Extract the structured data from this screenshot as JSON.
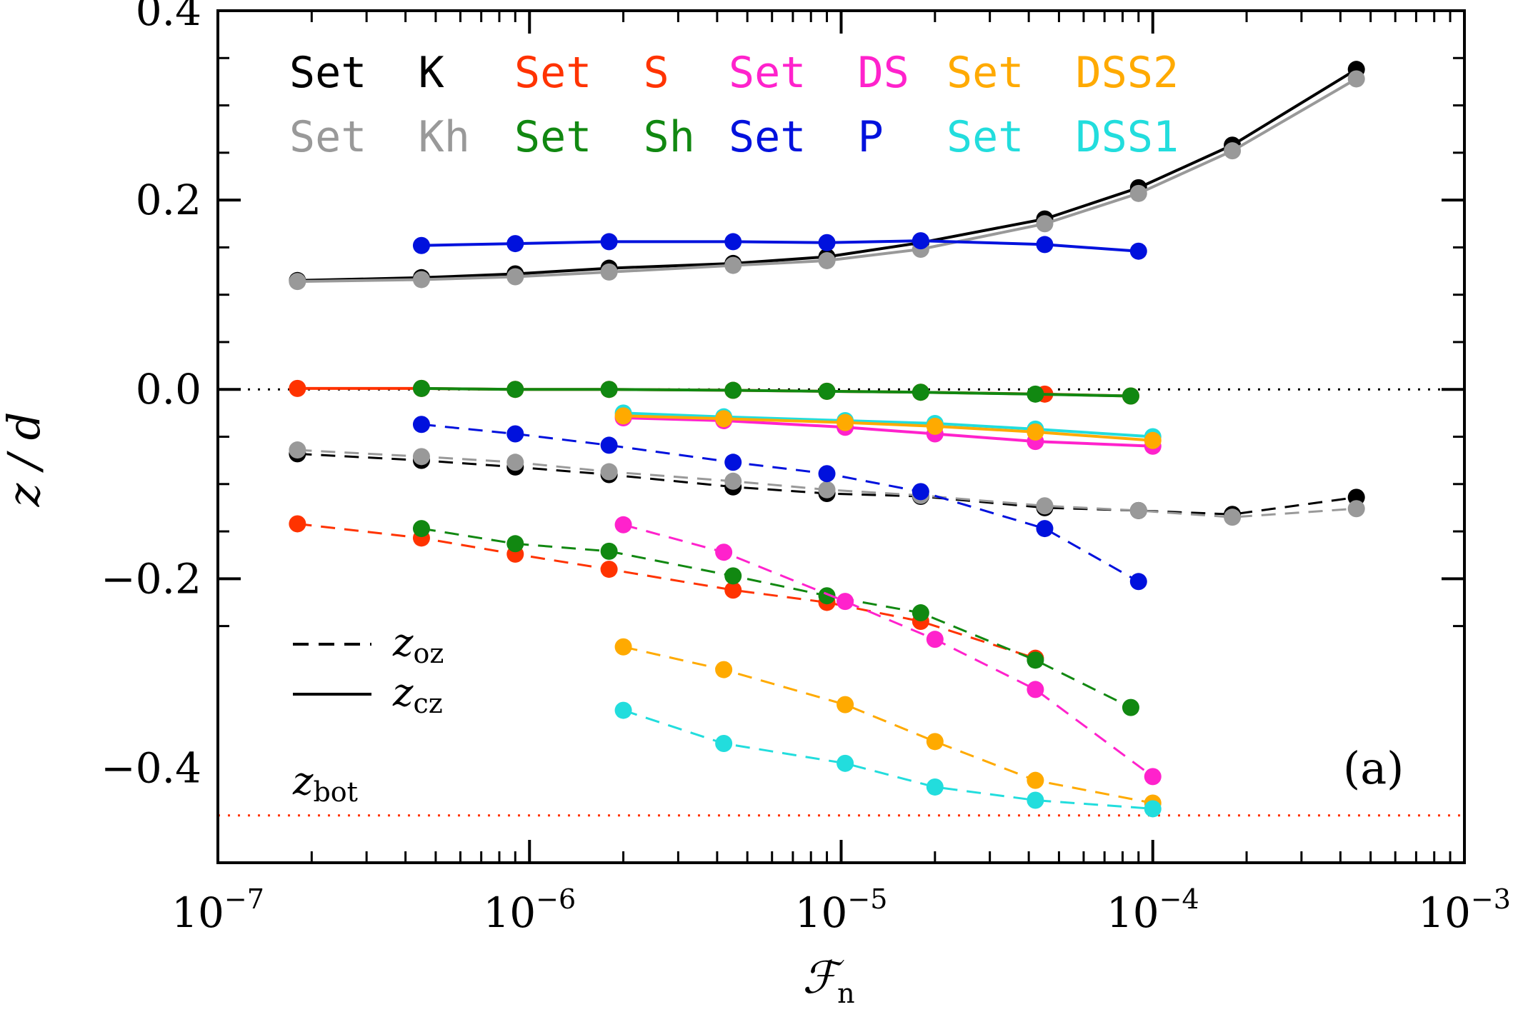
{
  "colors": {
    "K": "#000000",
    "Kh": "#999999",
    "S": "#ff3300",
    "Sh": "#118811",
    "DS": "#ff22cc",
    "P": "#0011dd",
    "DSS2": "#ffaa00",
    "DSS1": "#22dddd"
  },
  "chart_data": {
    "type": "line",
    "xscale": "log",
    "xlim": [
      1e-07,
      0.001
    ],
    "ylim": [
      -0.5,
      0.4
    ],
    "xlabel_main": "ℱ",
    "xlabel_sub": "n",
    "ylabel": "z / d",
    "x_ticks": [
      {
        "base": "10",
        "exp": "−7",
        "value": 1e-07
      },
      {
        "base": "10",
        "exp": "−6",
        "value": 1e-06
      },
      {
        "base": "10",
        "exp": "−5",
        "value": 1e-05
      },
      {
        "base": "10",
        "exp": "−4",
        "value": 0.0001
      },
      {
        "base": "10",
        "exp": "−3",
        "value": 0.001
      }
    ],
    "y_ticks": [
      {
        "label": "0.4",
        "value": 0.4
      },
      {
        "label": "0.2",
        "value": 0.2
      },
      {
        "label": "0.0",
        "value": 0.0
      },
      {
        "label": "−0.2",
        "value": -0.2
      },
      {
        "label": "−0.4",
        "value": -0.4
      }
    ],
    "zero_line": 0.0,
    "z_bot": -0.45,
    "legend": [
      {
        "key": "K",
        "label": "Set  K"
      },
      {
        "key": "S",
        "label": "Set  S"
      },
      {
        "key": "DS",
        "label": "Set  DS"
      },
      {
        "key": "DSS2",
        "label": "Set  DSS2"
      },
      {
        "key": "Kh",
        "label": "Set  Kh"
      },
      {
        "key": "Sh",
        "label": "Set  Sh"
      },
      {
        "key": "P",
        "label": "Set  P"
      },
      {
        "key": "DSS1",
        "label": "Set  DSS1"
      }
    ],
    "line_style_legend": {
      "dashed_main": "z",
      "dashed_sub": "oz",
      "solid_main": "z",
      "solid_sub": "cz"
    },
    "zbot_label": {
      "main": "z",
      "sub": "bot"
    },
    "panel_label": "(a)",
    "series": [
      {
        "name": "K",
        "kind": "cz",
        "x": [
          1.8e-07,
          4.5e-07,
          9e-07,
          1.8e-06,
          4.5e-06,
          9e-06,
          1.8e-05,
          4.5e-05,
          9e-05,
          0.00018,
          0.00045
        ],
        "y": [
          0.115,
          0.118,
          0.122,
          0.128,
          0.133,
          0.14,
          0.155,
          0.18,
          0.213,
          0.258,
          0.338
        ]
      },
      {
        "name": "Kh",
        "kind": "cz",
        "x": [
          1.8e-07,
          4.5e-07,
          9e-07,
          1.8e-06,
          4.5e-06,
          9e-06,
          1.8e-05,
          4.5e-05,
          9e-05,
          0.00018,
          0.00045
        ],
        "y": [
          0.114,
          0.116,
          0.119,
          0.124,
          0.131,
          0.136,
          0.148,
          0.175,
          0.207,
          0.252,
          0.328
        ]
      },
      {
        "name": "P",
        "kind": "cz",
        "x": [
          4.5e-07,
          9e-07,
          1.8e-06,
          4.5e-06,
          9e-06,
          1.8e-05,
          4.5e-05,
          9e-05
        ],
        "y": [
          0.152,
          0.154,
          0.156,
          0.156,
          0.155,
          0.157,
          0.153,
          0.146
        ]
      },
      {
        "name": "S",
        "kind": "cz",
        "x": [
          1.8e-07,
          4.5e-07,
          9e-07,
          1.8e-06,
          4.5e-06,
          9e-06,
          1.8e-05,
          4.5e-05,
          8.5e-05
        ],
        "y": [
          0.001,
          0.001,
          0.0,
          0.0,
          -0.001,
          -0.002,
          -0.003,
          -0.005,
          -0.007
        ]
      },
      {
        "name": "Sh",
        "kind": "cz",
        "x": [
          4.5e-07,
          9e-07,
          1.8e-06,
          4.5e-06,
          9e-06,
          1.8e-05,
          4.2e-05,
          8.5e-05
        ],
        "y": [
          0.001,
          0.0,
          0.0,
          -0.001,
          -0.002,
          -0.003,
          -0.005,
          -0.007
        ]
      },
      {
        "name": "DS",
        "kind": "cz",
        "x": [
          2e-06,
          4.2e-06,
          1.03e-05,
          2e-05,
          4.2e-05,
          0.0001
        ],
        "y": [
          -0.03,
          -0.033,
          -0.04,
          -0.047,
          -0.055,
          -0.06
        ]
      },
      {
        "name": "DSS1",
        "kind": "cz",
        "x": [
          2e-06,
          4.2e-06,
          1.03e-05,
          2e-05,
          4.2e-05,
          0.0001
        ],
        "y": [
          -0.025,
          -0.029,
          -0.033,
          -0.036,
          -0.042,
          -0.05
        ]
      },
      {
        "name": "DSS2",
        "kind": "cz",
        "x": [
          2e-06,
          4.2e-06,
          1.03e-05,
          2e-05,
          4.2e-05,
          0.0001
        ],
        "y": [
          -0.028,
          -0.031,
          -0.035,
          -0.039,
          -0.045,
          -0.054
        ]
      },
      {
        "name": "K",
        "kind": "oz",
        "x": [
          1.8e-07,
          4.5e-07,
          9e-07,
          1.8e-06,
          4.5e-06,
          9e-06,
          1.8e-05,
          4.5e-05,
          9e-05,
          0.00018,
          0.00045
        ],
        "y": [
          -0.068,
          -0.075,
          -0.082,
          -0.09,
          -0.103,
          -0.11,
          -0.113,
          -0.125,
          -0.128,
          -0.132,
          -0.114
        ]
      },
      {
        "name": "Kh",
        "kind": "oz",
        "x": [
          1.8e-07,
          4.5e-07,
          9e-07,
          1.8e-06,
          4.5e-06,
          9e-06,
          1.8e-05,
          4.5e-05,
          9e-05,
          0.00018,
          0.00045
        ],
        "y": [
          -0.064,
          -0.071,
          -0.077,
          -0.087,
          -0.097,
          -0.106,
          -0.112,
          -0.123,
          -0.128,
          -0.135,
          -0.126
        ]
      },
      {
        "name": "P",
        "kind": "oz",
        "x": [
          4.5e-07,
          9e-07,
          1.8e-06,
          4.5e-06,
          9e-06,
          1.8e-05,
          4.5e-05,
          9e-05
        ],
        "y": [
          -0.037,
          -0.047,
          -0.059,
          -0.077,
          -0.089,
          -0.108,
          -0.147,
          -0.203
        ]
      },
      {
        "name": "S",
        "kind": "oz",
        "x": [
          1.8e-07,
          4.5e-07,
          9e-07,
          1.8e-06,
          4.5e-06,
          9e-06,
          1.8e-05,
          4.2e-05
        ],
        "y": [
          -0.142,
          -0.157,
          -0.174,
          -0.19,
          -0.212,
          -0.225,
          -0.245,
          -0.284
        ]
      },
      {
        "name": "Sh",
        "kind": "oz",
        "x": [
          4.5e-07,
          9e-07,
          1.8e-06,
          4.5e-06,
          9e-06,
          1.8e-05,
          4.2e-05,
          8.5e-05
        ],
        "y": [
          -0.147,
          -0.163,
          -0.171,
          -0.197,
          -0.218,
          -0.236,
          -0.286,
          -0.336
        ]
      },
      {
        "name": "DS",
        "kind": "oz",
        "x": [
          2e-06,
          4.2e-06,
          1.03e-05,
          2e-05,
          4.2e-05,
          0.0001
        ],
        "y": [
          -0.143,
          -0.172,
          -0.224,
          -0.264,
          -0.317,
          -0.409
        ]
      },
      {
        "name": "DSS2",
        "kind": "oz",
        "x": [
          2e-06,
          4.2e-06,
          1.03e-05,
          2e-05,
          4.2e-05,
          0.0001
        ],
        "y": [
          -0.272,
          -0.296,
          -0.333,
          -0.372,
          -0.413,
          -0.437
        ]
      },
      {
        "name": "DSS1",
        "kind": "oz",
        "x": [
          2e-06,
          4.2e-06,
          1.03e-05,
          2e-05,
          4.2e-05,
          0.0001
        ],
        "y": [
          -0.339,
          -0.374,
          -0.395,
          -0.42,
          -0.434,
          -0.443
        ]
      }
    ]
  }
}
